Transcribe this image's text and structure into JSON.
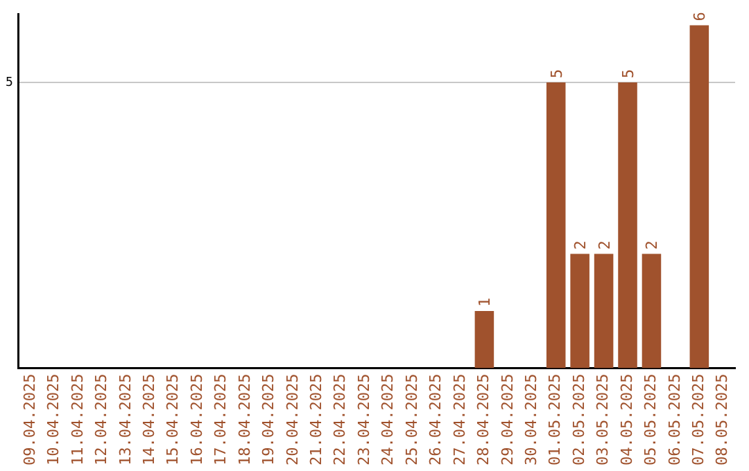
{
  "chart_data": {
    "type": "bar",
    "categories": [
      "09.04.2025",
      "10.04.2025",
      "11.04.2025",
      "12.04.2025",
      "13.04.2025",
      "14.04.2025",
      "15.04.2025",
      "16.04.2025",
      "17.04.2025",
      "18.04.2025",
      "19.04.2025",
      "20.04.2025",
      "21.04.2025",
      "22.04.2025",
      "23.04.2025",
      "24.04.2025",
      "25.04.2025",
      "26.04.2025",
      "27.04.2025",
      "28.04.2025",
      "29.04.2025",
      "30.04.2025",
      "01.05.2025",
      "02.05.2025",
      "03.05.2025",
      "04.05.2025",
      "05.05.2025",
      "06.05.2025",
      "07.05.2025",
      "08.05.2025"
    ],
    "values": [
      null,
      null,
      null,
      null,
      null,
      null,
      null,
      null,
      null,
      null,
      null,
      null,
      null,
      null,
      null,
      null,
      null,
      null,
      null,
      1,
      null,
      null,
      5,
      2,
      2,
      5,
      2,
      null,
      6,
      null
    ],
    "data_labels": true,
    "color": "#a0522d",
    "ylim": [
      0,
      6.2
    ],
    "yticks": [
      5
    ],
    "grid": "y",
    "legend": false
  }
}
